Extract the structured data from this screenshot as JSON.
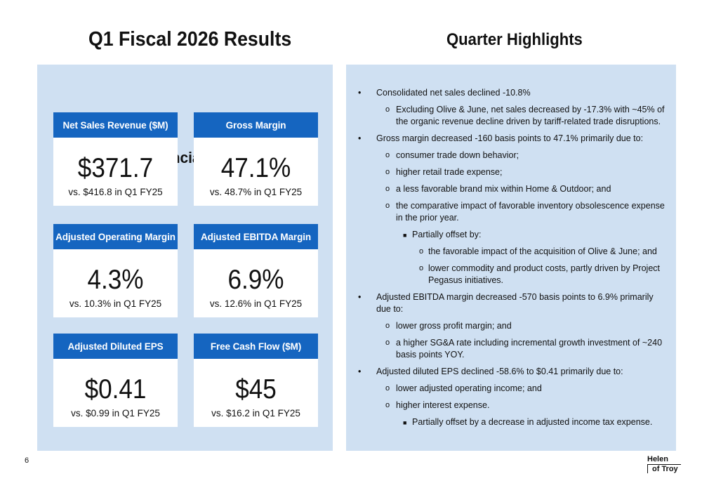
{
  "left_title": "Q1 Fiscal 2026 Results",
  "right_title": "Quarter Highlights",
  "metrics_heading": "Key Financial Metrics",
  "metrics": [
    {
      "label": "Net Sales Revenue ($M)",
      "value": "$371.7",
      "compare": "vs. $416.8 in Q1 FY25"
    },
    {
      "label": "Gross Margin",
      "value": "47.1%",
      "compare": "vs. 48.7% in Q1 FY25"
    },
    {
      "label": "Adjusted Operating Margin",
      "value": "4.3%",
      "compare": "vs. 10.3% in Q1 FY25"
    },
    {
      "label": "Adjusted EBITDA Margin",
      "value": "6.9%",
      "compare": "vs. 12.6% in Q1 FY25"
    },
    {
      "label": "Adjusted Diluted EPS",
      "value": "$0.41",
      "compare": "vs. $0.99 in Q1 FY25"
    },
    {
      "label": "Free Cash Flow ($M)",
      "value": "$45",
      "compare": "vs. $16.2 in Q1 FY25"
    }
  ],
  "highlights": [
    {
      "level": 1,
      "text": "Consolidated net sales declined -10.8%"
    },
    {
      "level": 2,
      "text": "Excluding Olive & June, net sales decreased by -17.3% with ~45% of the organic revenue decline driven by tariff-related trade disruptions."
    },
    {
      "level": 1,
      "text": "Gross margin decreased -160 basis points to 47.1% primarily due to:"
    },
    {
      "level": 2,
      "text": "consumer trade down behavior;"
    },
    {
      "level": 2,
      "text": "higher retail trade expense;"
    },
    {
      "level": 2,
      "text": "a less favorable brand mix within Home & Outdoor; and"
    },
    {
      "level": 2,
      "text": "the comparative impact of favorable inventory obsolescence expense in the prior year."
    },
    {
      "level": 3,
      "text": "Partially offset by:"
    },
    {
      "level": 4,
      "text": "the favorable impact of the acquisition of Olive & June; and"
    },
    {
      "level": 4,
      "text": "lower commodity and product costs, partly driven by Project Pegasus initiatives."
    },
    {
      "level": 1,
      "text": "Adjusted EBITDA margin decreased -570 basis points to 6.9% primarily due to:"
    },
    {
      "level": 2,
      "text": "lower gross profit margin; and"
    },
    {
      "level": 2,
      "text": "a higher SG&A rate including incremental growth investment of ~240 basis points YOY."
    },
    {
      "level": 1,
      "text": "Adjusted diluted EPS declined -58.6% to $0.41 primarily due to:"
    },
    {
      "level": 2,
      "text": "lower adjusted operating income; and"
    },
    {
      "level": 2,
      "text": "higher interest expense."
    },
    {
      "level": 3,
      "text": "Partially offset by a decrease in adjusted income tax expense."
    }
  ],
  "markers": {
    "1": "•",
    "2": "o",
    "3": "■",
    "4": "o"
  },
  "page_number": "6",
  "logo": {
    "line1": "Helen",
    "line2": "of Troy"
  },
  "colors": {
    "panel": "#cfe0f2",
    "card_header": "#1565c0",
    "card_body": "#ffffff"
  }
}
